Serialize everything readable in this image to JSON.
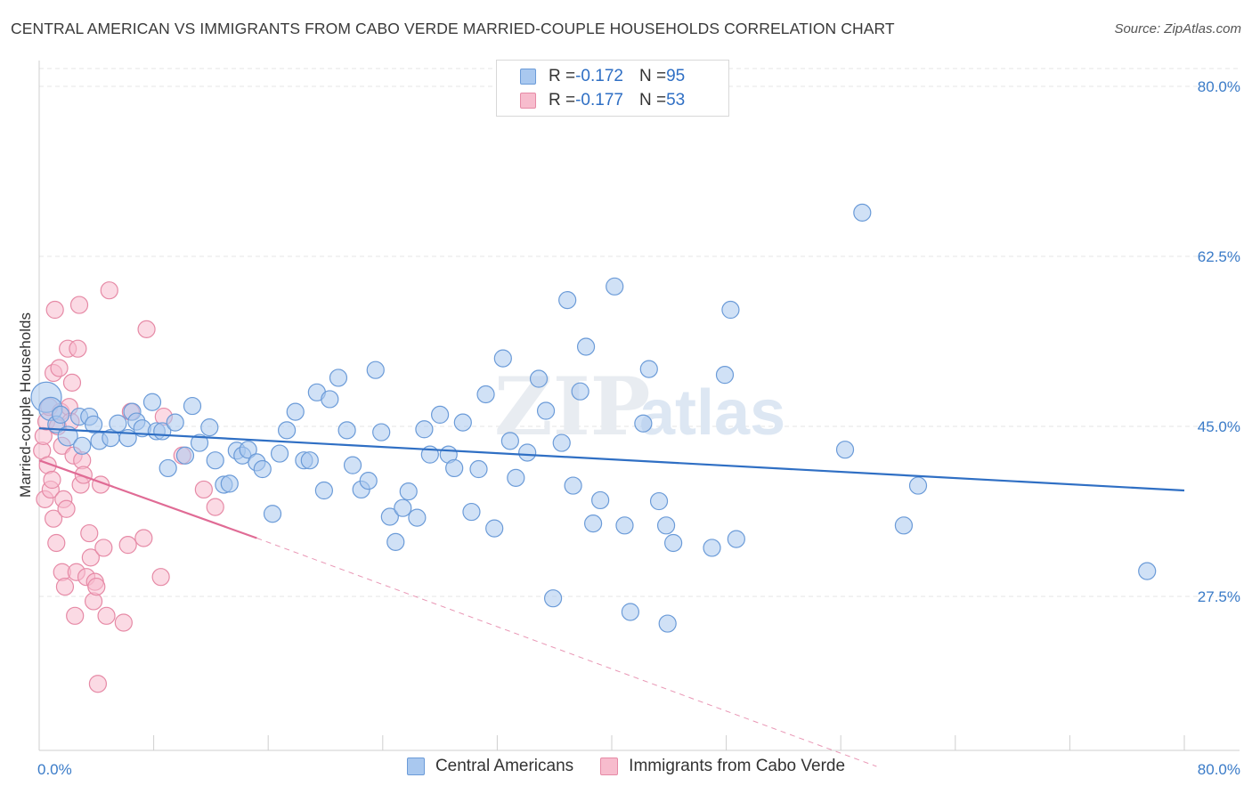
{
  "title": "CENTRAL AMERICAN VS IMMIGRANTS FROM CABO VERDE MARRIED-COUPLE HOUSEHOLDS CORRELATION CHART",
  "source": "Source: ZipAtlas.com",
  "watermark": {
    "zip": "ZIP",
    "atlas": "atlas"
  },
  "legend": {
    "rows": [
      {
        "r_label": "R = ",
        "r_value": "-0.172",
        "n_label": "N = ",
        "n_value": "95",
        "color": "#a9c8ef",
        "border": "#6b9bd8"
      },
      {
        "r_label": "R = ",
        "r_value": "-0.177",
        "n_label": "N = ",
        "n_value": "53",
        "color": "#f7bccd",
        "border": "#e68aa6"
      }
    ]
  },
  "chart_data": {
    "type": "scatter",
    "title": "CENTRAL AMERICAN VS IMMIGRANTS FROM CABO VERDE MARRIED-COUPLE HOUSEHOLDS CORRELATION CHART",
    "xlabel": "",
    "ylabel": "Married-couple Households",
    "xlim": [
      0,
      80
    ],
    "ylim": [
      10,
      82
    ],
    "x_tick_labels": [
      "0.0%",
      "80.0%"
    ],
    "y_ticks": [
      27.5,
      45.0,
      62.5,
      80.0
    ],
    "y_tick_labels": [
      "27.5%",
      "45.0%",
      "62.5%",
      "80.0%"
    ],
    "grid": true,
    "legend_position": "top-center",
    "series": [
      {
        "name": "Central Americans",
        "color": "#a9c8ef",
        "stroke": "#6b9bd8",
        "line_color": "#2f6fc4",
        "trend": {
          "x0": 0,
          "y0": 44.8,
          "x1": 80,
          "y1": 38.4
        },
        "points": [
          [
            0.5,
            48.0
          ],
          [
            0.8,
            46.8
          ],
          [
            1.2,
            45.2
          ],
          [
            1.5,
            46.2
          ],
          [
            2.0,
            44.0
          ],
          [
            2.8,
            46.0
          ],
          [
            3.0,
            43.0
          ],
          [
            3.5,
            46.0
          ],
          [
            3.8,
            45.2
          ],
          [
            4.2,
            43.5
          ],
          [
            5.0,
            43.8
          ],
          [
            5.5,
            45.3
          ],
          [
            6.2,
            43.8
          ],
          [
            6.5,
            46.5
          ],
          [
            6.8,
            45.5
          ],
          [
            7.2,
            44.8
          ],
          [
            7.9,
            47.5
          ],
          [
            8.2,
            44.5
          ],
          [
            8.6,
            44.5
          ],
          [
            9.0,
            40.7
          ],
          [
            9.5,
            45.4
          ],
          [
            10.2,
            42.0
          ],
          [
            10.7,
            47.1
          ],
          [
            11.2,
            43.3
          ],
          [
            11.9,
            44.9
          ],
          [
            12.3,
            41.5
          ],
          [
            12.9,
            39.0
          ],
          [
            13.3,
            39.1
          ],
          [
            13.8,
            42.5
          ],
          [
            14.2,
            42.0
          ],
          [
            14.6,
            42.6
          ],
          [
            15.2,
            41.3
          ],
          [
            15.6,
            40.6
          ],
          [
            16.3,
            36.0
          ],
          [
            16.8,
            42.2
          ],
          [
            17.3,
            44.6
          ],
          [
            17.9,
            46.5
          ],
          [
            18.5,
            41.5
          ],
          [
            18.9,
            41.5
          ],
          [
            19.4,
            48.5
          ],
          [
            19.9,
            38.4
          ],
          [
            20.3,
            47.8
          ],
          [
            20.9,
            50.0
          ],
          [
            21.5,
            44.6
          ],
          [
            21.9,
            41.0
          ],
          [
            22.5,
            38.5
          ],
          [
            23.0,
            39.4
          ],
          [
            23.5,
            50.8
          ],
          [
            23.9,
            44.4
          ],
          [
            24.5,
            35.7
          ],
          [
            24.9,
            33.1
          ],
          [
            25.4,
            36.6
          ],
          [
            25.8,
            38.3
          ],
          [
            26.4,
            35.6
          ],
          [
            26.9,
            44.7
          ],
          [
            27.3,
            42.1
          ],
          [
            28.0,
            46.2
          ],
          [
            28.6,
            42.1
          ],
          [
            29.0,
            40.7
          ],
          [
            29.6,
            45.4
          ],
          [
            30.2,
            36.2
          ],
          [
            30.7,
            40.6
          ],
          [
            31.2,
            48.3
          ],
          [
            31.8,
            34.5
          ],
          [
            32.4,
            52.0
          ],
          [
            32.9,
            43.5
          ],
          [
            33.3,
            39.7
          ],
          [
            34.1,
            42.3
          ],
          [
            34.9,
            49.9
          ],
          [
            35.4,
            46.6
          ],
          [
            35.9,
            27.3
          ],
          [
            36.5,
            43.3
          ],
          [
            36.9,
            58.0
          ],
          [
            37.3,
            38.9
          ],
          [
            37.8,
            48.6
          ],
          [
            38.2,
            53.2
          ],
          [
            38.7,
            35.0
          ],
          [
            39.2,
            37.4
          ],
          [
            40.2,
            59.4
          ],
          [
            40.9,
            34.8
          ],
          [
            41.3,
            25.9
          ],
          [
            42.2,
            45.3
          ],
          [
            42.6,
            50.9
          ],
          [
            43.3,
            37.3
          ],
          [
            43.9,
            24.7
          ],
          [
            43.8,
            34.8
          ],
          [
            44.3,
            33.0
          ],
          [
            47.0,
            32.5
          ],
          [
            47.9,
            50.3
          ],
          [
            48.3,
            57.0
          ],
          [
            48.7,
            33.4
          ],
          [
            56.3,
            42.6
          ],
          [
            57.5,
            67.0
          ],
          [
            60.4,
            34.8
          ],
          [
            61.4,
            38.9
          ],
          [
            77.4,
            30.1
          ]
        ]
      },
      {
        "name": "Immigrants from Cabo Verde",
        "color": "#f7bccd",
        "stroke": "#e68aa6",
        "line_color": "#e06b95",
        "trend": {
          "x0": 0,
          "y0": 41.5,
          "x1": 15.2,
          "y1": 33.5
        },
        "trend_dashed": {
          "x0": 15.2,
          "y0": 33.5,
          "x1": 58.5,
          "y1": 10.0
        },
        "points": [
          [
            0.2,
            42.5
          ],
          [
            0.3,
            44.0
          ],
          [
            0.4,
            37.5
          ],
          [
            0.5,
            45.5
          ],
          [
            0.6,
            41.0
          ],
          [
            0.7,
            47.0
          ],
          [
            0.8,
            38.5
          ],
          [
            0.9,
            39.5
          ],
          [
            1.0,
            50.5
          ],
          [
            1.0,
            35.5
          ],
          [
            1.1,
            57.0
          ],
          [
            1.2,
            33.0
          ],
          [
            1.3,
            45.0
          ],
          [
            1.4,
            51.0
          ],
          [
            1.5,
            46.5
          ],
          [
            1.6,
            43.0
          ],
          [
            1.6,
            30.0
          ],
          [
            1.7,
            37.5
          ],
          [
            1.8,
            28.5
          ],
          [
            1.9,
            36.5
          ],
          [
            2.0,
            53.0
          ],
          [
            2.1,
            47.0
          ],
          [
            2.2,
            45.5
          ],
          [
            2.3,
            49.5
          ],
          [
            2.4,
            42.0
          ],
          [
            2.5,
            25.5
          ],
          [
            2.6,
            30.0
          ],
          [
            2.7,
            53.0
          ],
          [
            2.8,
            57.5
          ],
          [
            2.9,
            39.0
          ],
          [
            3.0,
            41.5
          ],
          [
            3.1,
            40.0
          ],
          [
            3.3,
            29.5
          ],
          [
            3.5,
            34.0
          ],
          [
            3.6,
            31.5
          ],
          [
            3.8,
            27.0
          ],
          [
            3.9,
            29.0
          ],
          [
            4.0,
            28.5
          ],
          [
            4.1,
            18.5
          ],
          [
            4.3,
            39.0
          ],
          [
            4.5,
            32.5
          ],
          [
            4.7,
            25.5
          ],
          [
            4.9,
            59.0
          ],
          [
            5.9,
            24.8
          ],
          [
            6.2,
            32.8
          ],
          [
            6.4,
            46.5
          ],
          [
            7.3,
            33.5
          ],
          [
            7.5,
            55.0
          ],
          [
            8.5,
            29.5
          ],
          [
            8.7,
            46.0
          ],
          [
            10.0,
            42.0
          ],
          [
            11.5,
            38.5
          ],
          [
            12.3,
            36.7
          ]
        ]
      }
    ]
  }
}
